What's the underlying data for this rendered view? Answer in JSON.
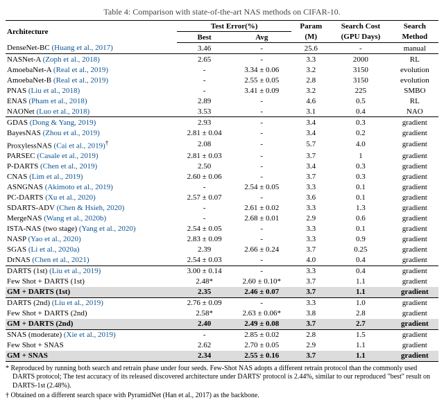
{
  "caption": "Table 4: Comparison with state-of-the-art NAS methods on CIFAR-10.",
  "headers": {
    "architecture": "Architecture",
    "test_error": "Test Error(%)",
    "best": "Best",
    "avg": "Avg",
    "param": "Param",
    "param_unit": "(M)",
    "search_cost": "Search Cost",
    "search_cost_unit": "(GPU Days)",
    "search_method": "Search",
    "search_method2": "Method"
  },
  "groups": [
    {
      "rows": [
        {
          "arch": "DenseNet-BC",
          "cite": "(Huang et al., 2017)",
          "best": "3.46",
          "avg": "-",
          "param": "25.6",
          "cost": "-",
          "method": "manual"
        }
      ]
    },
    {
      "rows": [
        {
          "arch": "NASNet-A",
          "cite": "(Zoph et al., 2018)",
          "best": "2.65",
          "avg": "-",
          "param": "3.3",
          "cost": "2000",
          "method": "RL"
        },
        {
          "arch": "AmoebaNet-A",
          "cite": "(Real et al., 2019)",
          "best": "-",
          "avg": "3.34 ± 0.06",
          "param": "3.2",
          "cost": "3150",
          "method": "evolution"
        },
        {
          "arch": "AmoebaNet-B",
          "cite": "(Real et al., 2019)",
          "best": "-",
          "avg": "2.55 ± 0.05",
          "param": "2.8",
          "cost": "3150",
          "method": "evolution"
        },
        {
          "arch": "PNAS",
          "cite": "(Liu et al., 2018)",
          "best": "-",
          "avg": "3.41 ± 0.09",
          "param": "3.2",
          "cost": "225",
          "method": "SMBO"
        },
        {
          "arch": "ENAS",
          "cite": "(Pham et al., 2018)",
          "best": "2.89",
          "avg": "-",
          "param": "4.6",
          "cost": "0.5",
          "method": "RL"
        },
        {
          "arch": "NAONet",
          "cite": "(Luo et al., 2018)",
          "best": "3.53",
          "avg": "-",
          "param": "3.1",
          "cost": "0.4",
          "method": "NAO"
        }
      ]
    },
    {
      "rows": [
        {
          "arch": "GDAS",
          "cite": "(Dong & Yang, 2019)",
          "best": "2.93",
          "avg": "-",
          "param": "3.4",
          "cost": "0.3",
          "method": "gradient"
        },
        {
          "arch": "BayesNAS",
          "cite": "(Zhou et al., 2019)",
          "best": "2.81 ± 0.04",
          "avg": "-",
          "param": "3.4",
          "cost": "0.2",
          "method": "gradient"
        },
        {
          "arch": "ProxylessNAS",
          "cite": "(Cai et al., 2019)",
          "sup": "†",
          "best": "2.08",
          "avg": "-",
          "param": "5.7",
          "cost": "4.0",
          "method": "gradient"
        },
        {
          "arch": "PARSEC",
          "cite": "(Casale et al., 2019)",
          "best": "2.81 ± 0.03",
          "avg": "-",
          "param": "3.7",
          "cost": "1",
          "method": "gradient"
        },
        {
          "arch": "P-DARTS",
          "cite": "(Chen et al., 2019)",
          "best": "2.50",
          "avg": "-",
          "param": "3.4",
          "cost": "0.3",
          "method": "gradient"
        },
        {
          "arch": "CNAS",
          "cite": "(Lim et al., 2019)",
          "best": "2.60 ± 0.06",
          "avg": "-",
          "param": "3.7",
          "cost": "0.3",
          "method": "gradient"
        },
        {
          "arch": "ASNGNAS",
          "cite": "(Akimoto et al., 2019)",
          "best": "-",
          "avg": "2.54 ± 0.05",
          "param": "3.3",
          "cost": "0.1",
          "method": "gradient"
        },
        {
          "arch": "PC-DARTS",
          "cite": "(Xu et al., 2020)",
          "best": "2.57 ± 0.07",
          "avg": "-",
          "param": "3.6",
          "cost": "0.1",
          "method": "gradient"
        },
        {
          "arch": "SDARTS-ADV",
          "cite": "(Chen & Hsieh, 2020)",
          "best": "-",
          "avg": "2.61 ± 0.02",
          "param": "3.3",
          "cost": "1.3",
          "method": "gradient"
        },
        {
          "arch": "MergeNAS",
          "cite": "(Wang et al., 2020b)",
          "best": "-",
          "avg": "2.68 ± 0.01",
          "param": "2.9",
          "cost": "0.6",
          "method": "gradient"
        },
        {
          "arch": "ISTA-NAS (two stage)",
          "cite": "(Yang et al., 2020)",
          "best": "2.54 ± 0.05",
          "avg": "-",
          "param": "3.3",
          "cost": "0.1",
          "method": "gradient"
        },
        {
          "arch": "NASP",
          "cite": "(Yao et al., 2020)",
          "best": "2.83 ± 0.09",
          "avg": "-",
          "param": "3.3",
          "cost": "0.9",
          "method": "gradient"
        },
        {
          "arch": "SGAS",
          "cite": "(Li et al., 2020a)",
          "best": "2.39",
          "avg": "2.66 ± 0.24",
          "param": "3.7",
          "cost": "0.25",
          "method": "gradient"
        },
        {
          "arch": "DrNAS",
          "cite": "(Chen et al., 2021)",
          "best": "2.54 ± 0.03",
          "avg": "-",
          "param": "4.0",
          "cost": "0.4",
          "method": "gradient"
        }
      ]
    },
    {
      "rows": [
        {
          "arch": "DARTS (1st)",
          "cite": "(Liu et al., 2019)",
          "best": "3.00 ± 0.14",
          "avg": "-",
          "param": "3.3",
          "cost": "0.4",
          "method": "gradient"
        },
        {
          "arch": "Few Shot + DARTS (1st)",
          "cite": "",
          "best": "2.48*",
          "avg": "2.60 ± 0.10*",
          "param": "3.7",
          "cost": "1.1",
          "method": "gradient"
        },
        {
          "arch": "GM + DARTS (1st)",
          "cite": "",
          "best": "2.35",
          "avg": "2.46 ± 0.07",
          "param": "3.7",
          "cost": "1.1",
          "method": "gradient",
          "highlight": true,
          "bold": true
        }
      ]
    },
    {
      "rows": [
        {
          "arch": "DARTS (2nd)",
          "cite": "(Liu et al., 2019)",
          "best": "2.76 ± 0.09",
          "avg": "-",
          "param": "3.3",
          "cost": "1.0",
          "method": "gradient"
        },
        {
          "arch": "Few Shot + DARTS (2nd)",
          "cite": "",
          "best": "2.58*",
          "avg": "2.63 ± 0.06*",
          "param": "3.8",
          "cost": "2.8",
          "method": "gradient"
        },
        {
          "arch": "GM + DARTS (2nd)",
          "cite": "",
          "best": "2.40",
          "avg": "2.49 ± 0.08",
          "param": "3.7",
          "cost": "2.7",
          "method": "gradient",
          "highlight": true,
          "bold": true
        }
      ]
    },
    {
      "rows": [
        {
          "arch": "SNAS (moderate)",
          "cite": "(Xie et al., 2019)",
          "best": "-",
          "avg": "2.85 ± 0.02",
          "param": "2.8",
          "cost": "1.5",
          "method": "gradient"
        },
        {
          "arch": "Few Shot + SNAS",
          "cite": "",
          "best": "2.62",
          "avg": "2.70 ± 0.05",
          "param": "2.9",
          "cost": "1.1",
          "method": "gradient"
        },
        {
          "arch": "GM + SNAS",
          "cite": "",
          "best": "2.34",
          "avg": "2.55 ± 0.16",
          "param": "3.7",
          "cost": "1.1",
          "method": "gradient",
          "highlight": true,
          "bold": true
        }
      ]
    }
  ],
  "footnotes": {
    "star": "* Reproduced by running both search and retrain phase under four seeds. Few-Shot NAS adopts a different retrain protocol than the commonly used DARTS protocol; The test accuracy of its released discovered architecture under DARTS' protocol is 2.44%, similar to our reproduced \"best\" result on DARTS-1st (2.48%).",
    "dagger": "† Obtained on a different search space with PyramidNet (Han et al., 2017) as the backbone."
  }
}
